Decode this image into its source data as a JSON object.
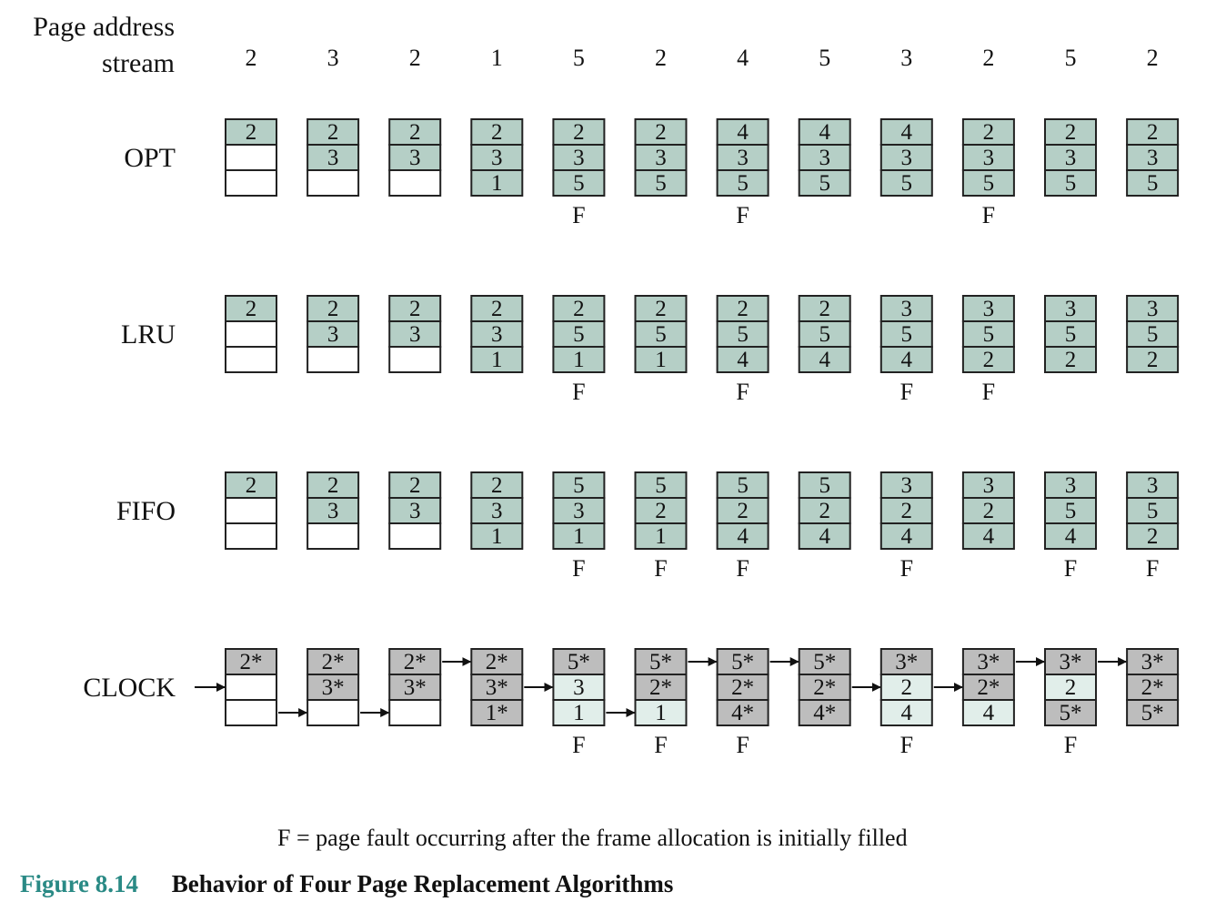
{
  "header": {
    "label_line1": "Page address",
    "label_line2": "stream"
  },
  "stream": [
    "2",
    "3",
    "2",
    "1",
    "5",
    "2",
    "4",
    "5",
    "3",
    "2",
    "5",
    "2"
  ],
  "algorithms": [
    {
      "name": "OPT",
      "frames": [
        [
          "2",
          null,
          null
        ],
        [
          "2",
          "3",
          null
        ],
        [
          "2",
          "3",
          null
        ],
        [
          "2",
          "3",
          "1"
        ],
        [
          "2",
          "3",
          "5"
        ],
        [
          "2",
          "3",
          "5"
        ],
        [
          "4",
          "3",
          "5"
        ],
        [
          "4",
          "3",
          "5"
        ],
        [
          "4",
          "3",
          "5"
        ],
        [
          "2",
          "3",
          "5"
        ],
        [
          "2",
          "3",
          "5"
        ],
        [
          "2",
          "3",
          "5"
        ]
      ],
      "faults": [
        "",
        "",
        "",
        "",
        "F",
        "",
        "F",
        "",
        "",
        "F",
        "",
        ""
      ]
    },
    {
      "name": "LRU",
      "frames": [
        [
          "2",
          null,
          null
        ],
        [
          "2",
          "3",
          null
        ],
        [
          "2",
          "3",
          null
        ],
        [
          "2",
          "3",
          "1"
        ],
        [
          "2",
          "5",
          "1"
        ],
        [
          "2",
          "5",
          "1"
        ],
        [
          "2",
          "5",
          "4"
        ],
        [
          "2",
          "5",
          "4"
        ],
        [
          "3",
          "5",
          "4"
        ],
        [
          "3",
          "5",
          "2"
        ],
        [
          "3",
          "5",
          "2"
        ],
        [
          "3",
          "5",
          "2"
        ]
      ],
      "faults": [
        "",
        "",
        "",
        "",
        "F",
        "",
        "F",
        "",
        "F",
        "F",
        "",
        ""
      ]
    },
    {
      "name": "FIFO",
      "frames": [
        [
          "2",
          null,
          null
        ],
        [
          "2",
          "3",
          null
        ],
        [
          "2",
          "3",
          null
        ],
        [
          "2",
          "3",
          "1"
        ],
        [
          "5",
          "3",
          "1"
        ],
        [
          "5",
          "2",
          "1"
        ],
        [
          "5",
          "2",
          "4"
        ],
        [
          "5",
          "2",
          "4"
        ],
        [
          "3",
          "2",
          "4"
        ],
        [
          "3",
          "2",
          "4"
        ],
        [
          "3",
          "5",
          "4"
        ],
        [
          "3",
          "5",
          "2"
        ]
      ],
      "faults": [
        "",
        "",
        "",
        "",
        "F",
        "F",
        "F",
        "",
        "F",
        "",
        "F",
        "F"
      ]
    },
    {
      "name": "CLOCK",
      "frames": [
        [
          "2*",
          null,
          null
        ],
        [
          "2*",
          "3*",
          null
        ],
        [
          "2*",
          "3*",
          null
        ],
        [
          "2*",
          "3*",
          "1*"
        ],
        [
          "5*",
          "3",
          "1"
        ],
        [
          "5*",
          "2*",
          "1"
        ],
        [
          "5*",
          "2*",
          "4*"
        ],
        [
          "5*",
          "2*",
          "4*"
        ],
        [
          "3*",
          "2",
          "4"
        ],
        [
          "3*",
          "2*",
          "4"
        ],
        [
          "3*",
          "2",
          "5*"
        ],
        [
          "3*",
          "2*",
          "5*"
        ]
      ],
      "pointer_row": [
        1,
        2,
        2,
        0,
        1,
        2,
        0,
        0,
        1,
        1,
        0,
        0
      ],
      "faults": [
        "",
        "",
        "",
        "",
        "F",
        "F",
        "F",
        "",
        "F",
        "",
        "F",
        ""
      ]
    }
  ],
  "legend": "F = page fault occurring after the frame allocation is initially filled",
  "caption": {
    "number": "Figure 8.14",
    "title": "Behavior of Four Page Replacement Algorithms"
  },
  "colors": {
    "filled": "#b5cfc6",
    "clock_set": "#bdbdbd",
    "clock_clear": "#e1eeea",
    "empty": "#ffffff",
    "figure_number": "#2a8a85"
  }
}
